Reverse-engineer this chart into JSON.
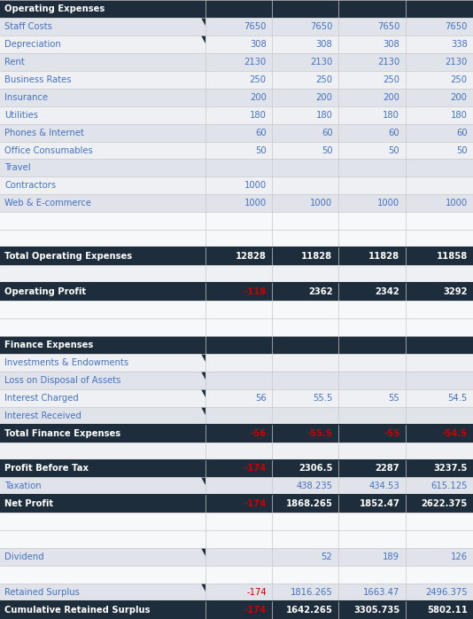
{
  "rows": [
    {
      "label": "Operating Expenses",
      "values": [
        "",
        "",
        "",
        ""
      ],
      "style": "header",
      "has_marker": true
    },
    {
      "label": "Staff Costs",
      "values": [
        "7650",
        "7650",
        "7650",
        "7650"
      ],
      "style": "normal",
      "has_marker": true
    },
    {
      "label": "Depreciation",
      "values": [
        "308",
        "308",
        "308",
        "338"
      ],
      "style": "normal",
      "has_marker": true
    },
    {
      "label": "Rent",
      "values": [
        "2130",
        "2130",
        "2130",
        "2130"
      ],
      "style": "normal",
      "has_marker": false
    },
    {
      "label": "Business Rates",
      "values": [
        "250",
        "250",
        "250",
        "250"
      ],
      "style": "normal",
      "has_marker": false
    },
    {
      "label": "Insurance",
      "values": [
        "200",
        "200",
        "200",
        "200"
      ],
      "style": "normal",
      "has_marker": false
    },
    {
      "label": "Utilities",
      "values": [
        "180",
        "180",
        "180",
        "180"
      ],
      "style": "normal",
      "has_marker": false
    },
    {
      "label": "Phones & Internet",
      "values": [
        "60",
        "60",
        "60",
        "60"
      ],
      "style": "normal",
      "has_marker": false
    },
    {
      "label": "Office Consumables",
      "values": [
        "50",
        "50",
        "50",
        "50"
      ],
      "style": "normal",
      "has_marker": false
    },
    {
      "label": "Travel",
      "values": [
        "",
        "",
        "",
        ""
      ],
      "style": "normal",
      "has_marker": false
    },
    {
      "label": "Contractors",
      "values": [
        "1000",
        "",
        "",
        ""
      ],
      "style": "normal",
      "has_marker": false
    },
    {
      "label": "Web & E-commerce",
      "values": [
        "1000",
        "1000",
        "1000",
        "1000"
      ],
      "style": "normal",
      "has_marker": false
    },
    {
      "label": "",
      "values": [
        "",
        "",
        "",
        ""
      ],
      "style": "empty_light",
      "has_marker": false
    },
    {
      "label": "",
      "values": [
        "",
        "",
        "",
        ""
      ],
      "style": "empty_light",
      "has_marker": false
    },
    {
      "label": "Total Operating Expenses",
      "values": [
        "12828",
        "11828",
        "11828",
        "11858"
      ],
      "style": "total",
      "has_marker": true,
      "thick_top": true
    },
    {
      "label": "",
      "values": [
        "",
        "",
        "",
        ""
      ],
      "style": "empty_dark",
      "has_marker": false
    },
    {
      "label": "Operating Profit",
      "values": [
        "-118",
        "2362",
        "2342",
        "3292"
      ],
      "style": "total_mixed",
      "has_marker": true,
      "thick_top": true
    },
    {
      "label": "",
      "values": [
        "",
        "",
        "",
        ""
      ],
      "style": "empty_light",
      "has_marker": false
    },
    {
      "label": "",
      "values": [
        "",
        "",
        "",
        ""
      ],
      "style": "empty_light",
      "has_marker": false
    },
    {
      "label": "Finance Expenses",
      "values": [
        "",
        "",
        "",
        ""
      ],
      "style": "header",
      "has_marker": true
    },
    {
      "label": "Investments & Endowments",
      "values": [
        "",
        "",
        "",
        ""
      ],
      "style": "normal",
      "has_marker": true
    },
    {
      "label": "Loss on Disposal of Assets",
      "values": [
        "",
        "",
        "",
        ""
      ],
      "style": "normal",
      "has_marker": true
    },
    {
      "label": "Interest Charged",
      "values": [
        "56",
        "55.5",
        "55",
        "54.5"
      ],
      "style": "normal",
      "has_marker": true
    },
    {
      "label": "Interest Received",
      "values": [
        "",
        "",
        "",
        ""
      ],
      "style": "normal",
      "has_marker": true
    },
    {
      "label": "Total Finance Expenses",
      "values": [
        "-56",
        "-55.5",
        "-55",
        "-54.5"
      ],
      "style": "total_red",
      "has_marker": false,
      "thick_top": true
    },
    {
      "label": "",
      "values": [
        "",
        "",
        "",
        ""
      ],
      "style": "empty_dark",
      "has_marker": false
    },
    {
      "label": "Profit Before Tax",
      "values": [
        "-174",
        "2306.5",
        "2287",
        "3237.5"
      ],
      "style": "total_mixed",
      "has_marker": true,
      "thick_top": true
    },
    {
      "label": "Taxation",
      "values": [
        "",
        "438.235",
        "434.53",
        "615.125"
      ],
      "style": "normal",
      "has_marker": true
    },
    {
      "label": "Net Profit",
      "values": [
        "-174",
        "1868.265",
        "1852.47",
        "2622.375"
      ],
      "style": "total_mixed",
      "has_marker": true,
      "thick_top": true
    },
    {
      "label": "",
      "values": [
        "",
        "",
        "",
        ""
      ],
      "style": "empty_light",
      "has_marker": false
    },
    {
      "label": "",
      "values": [
        "",
        "",
        "",
        ""
      ],
      "style": "empty_light",
      "has_marker": false
    },
    {
      "label": "Dividend",
      "values": [
        "",
        "52",
        "189",
        "126"
      ],
      "style": "normal",
      "has_marker": true
    },
    {
      "label": "",
      "values": [
        "",
        "",
        "",
        ""
      ],
      "style": "empty_light",
      "has_marker": false
    },
    {
      "label": "Retained Surplus",
      "values": [
        "-174",
        "1816.265",
        "1663.47",
        "2496.375"
      ],
      "style": "normal_mixed",
      "has_marker": true
    },
    {
      "label": "Cumulative Retained Surplus",
      "values": [
        "-174",
        "1642.265",
        "3305.735",
        "5802.11"
      ],
      "style": "total_mixed",
      "has_marker": false,
      "thick_top": true
    }
  ],
  "col_starts": [
    0.0,
    0.435,
    0.575,
    0.715,
    0.857
  ],
  "col_ends": [
    0.435,
    0.575,
    0.715,
    0.857,
    1.0
  ],
  "colors": {
    "header_bg": "#1E2D3C",
    "header_text": "#FFFFFF",
    "total_bg": "#1E2D3C",
    "total_text": "#FFFFFF",
    "normal_text": "#4472C4",
    "red_text": "#CC0000",
    "grid_line": "#C8C8C8",
    "thick_border": "#1E2D3C",
    "row_light": "#EEF0F4",
    "row_dark": "#E0E3EA",
    "empty_light": "#F7F8FA",
    "empty_dark": "#EEF0F4",
    "marker_color": "#1E2D3C"
  },
  "fontsize": 7.2,
  "figsize": [
    5.34,
    6.98
  ],
  "dpi": 100
}
